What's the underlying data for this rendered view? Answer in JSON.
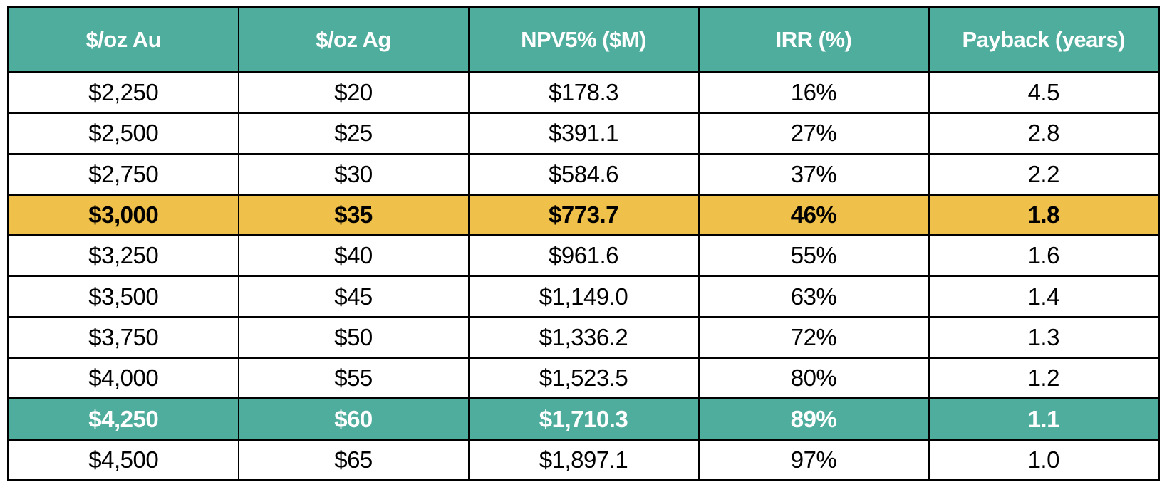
{
  "table": {
    "columns": [
      "$/oz Au",
      "$/oz Ag",
      "NPV5% ($M)",
      "IRR (%)",
      "Payback (years)"
    ],
    "rows": [
      {
        "cells": [
          "$2,250",
          "$20",
          "$178.3",
          "16%",
          "4.5"
        ],
        "highlight": "none"
      },
      {
        "cells": [
          "$2,500",
          "$25",
          "$391.1",
          "27%",
          "2.8"
        ],
        "highlight": "none"
      },
      {
        "cells": [
          "$2,750",
          "$30",
          "$584.6",
          "37%",
          "2.2"
        ],
        "highlight": "none"
      },
      {
        "cells": [
          "$3,000",
          "$35",
          "$773.7",
          "46%",
          "1.8"
        ],
        "highlight": "gold"
      },
      {
        "cells": [
          "$3,250",
          "$40",
          "$961.6",
          "55%",
          "1.6"
        ],
        "highlight": "none"
      },
      {
        "cells": [
          "$3,500",
          "$45",
          "$1,149.0",
          "63%",
          "1.4"
        ],
        "highlight": "none"
      },
      {
        "cells": [
          "$3,750",
          "$50",
          "$1,336.2",
          "72%",
          "1.3"
        ],
        "highlight": "none"
      },
      {
        "cells": [
          "$4,000",
          "$55",
          "$1,523.5",
          "80%",
          "1.2"
        ],
        "highlight": "none"
      },
      {
        "cells": [
          "$4,250",
          "$60",
          "$1,710.3",
          "89%",
          "1.1"
        ],
        "highlight": "teal"
      },
      {
        "cells": [
          "$4,500",
          "$65",
          "$1,897.1",
          "97%",
          "1.0"
        ],
        "highlight": "none"
      }
    ]
  },
  "colors": {
    "header_bg": "#4FAD9D",
    "header_text": "#FFFFFF",
    "gold_highlight_bg": "#F0C14A",
    "gold_highlight_text": "#000000",
    "teal_highlight_bg": "#4FAD9D",
    "teal_highlight_text": "#FFFFFF",
    "border": "#000000",
    "body_text": "#000000",
    "row_bg": "#FFFFFF"
  },
  "chart_data": {
    "type": "table",
    "title": "",
    "columns": [
      "$/oz Au",
      "$/oz Ag",
      "NPV5% ($M)",
      "IRR (%)",
      "Payback (years)"
    ],
    "rows": [
      [
        2250,
        20,
        178.3,
        16,
        4.5
      ],
      [
        2500,
        25,
        391.1,
        27,
        2.8
      ],
      [
        2750,
        30,
        584.6,
        37,
        2.2
      ],
      [
        3000,
        35,
        773.7,
        46,
        1.8
      ],
      [
        3250,
        40,
        961.6,
        55,
        1.6
      ],
      [
        3500,
        45,
        1149.0,
        63,
        1.4
      ],
      [
        3750,
        50,
        1336.2,
        72,
        1.3
      ],
      [
        4000,
        55,
        1523.5,
        80,
        1.2
      ],
      [
        4250,
        60,
        1710.3,
        89,
        1.1
      ],
      [
        4500,
        65,
        1897.1,
        97,
        1.0
      ]
    ],
    "highlighted_rows": [
      {
        "row_index": 3,
        "style": "gold"
      },
      {
        "row_index": 8,
        "style": "teal"
      }
    ],
    "layout_hints": {
      "grid": "on",
      "equal_column_widths": true,
      "header_style": "teal-bold-white"
    }
  }
}
